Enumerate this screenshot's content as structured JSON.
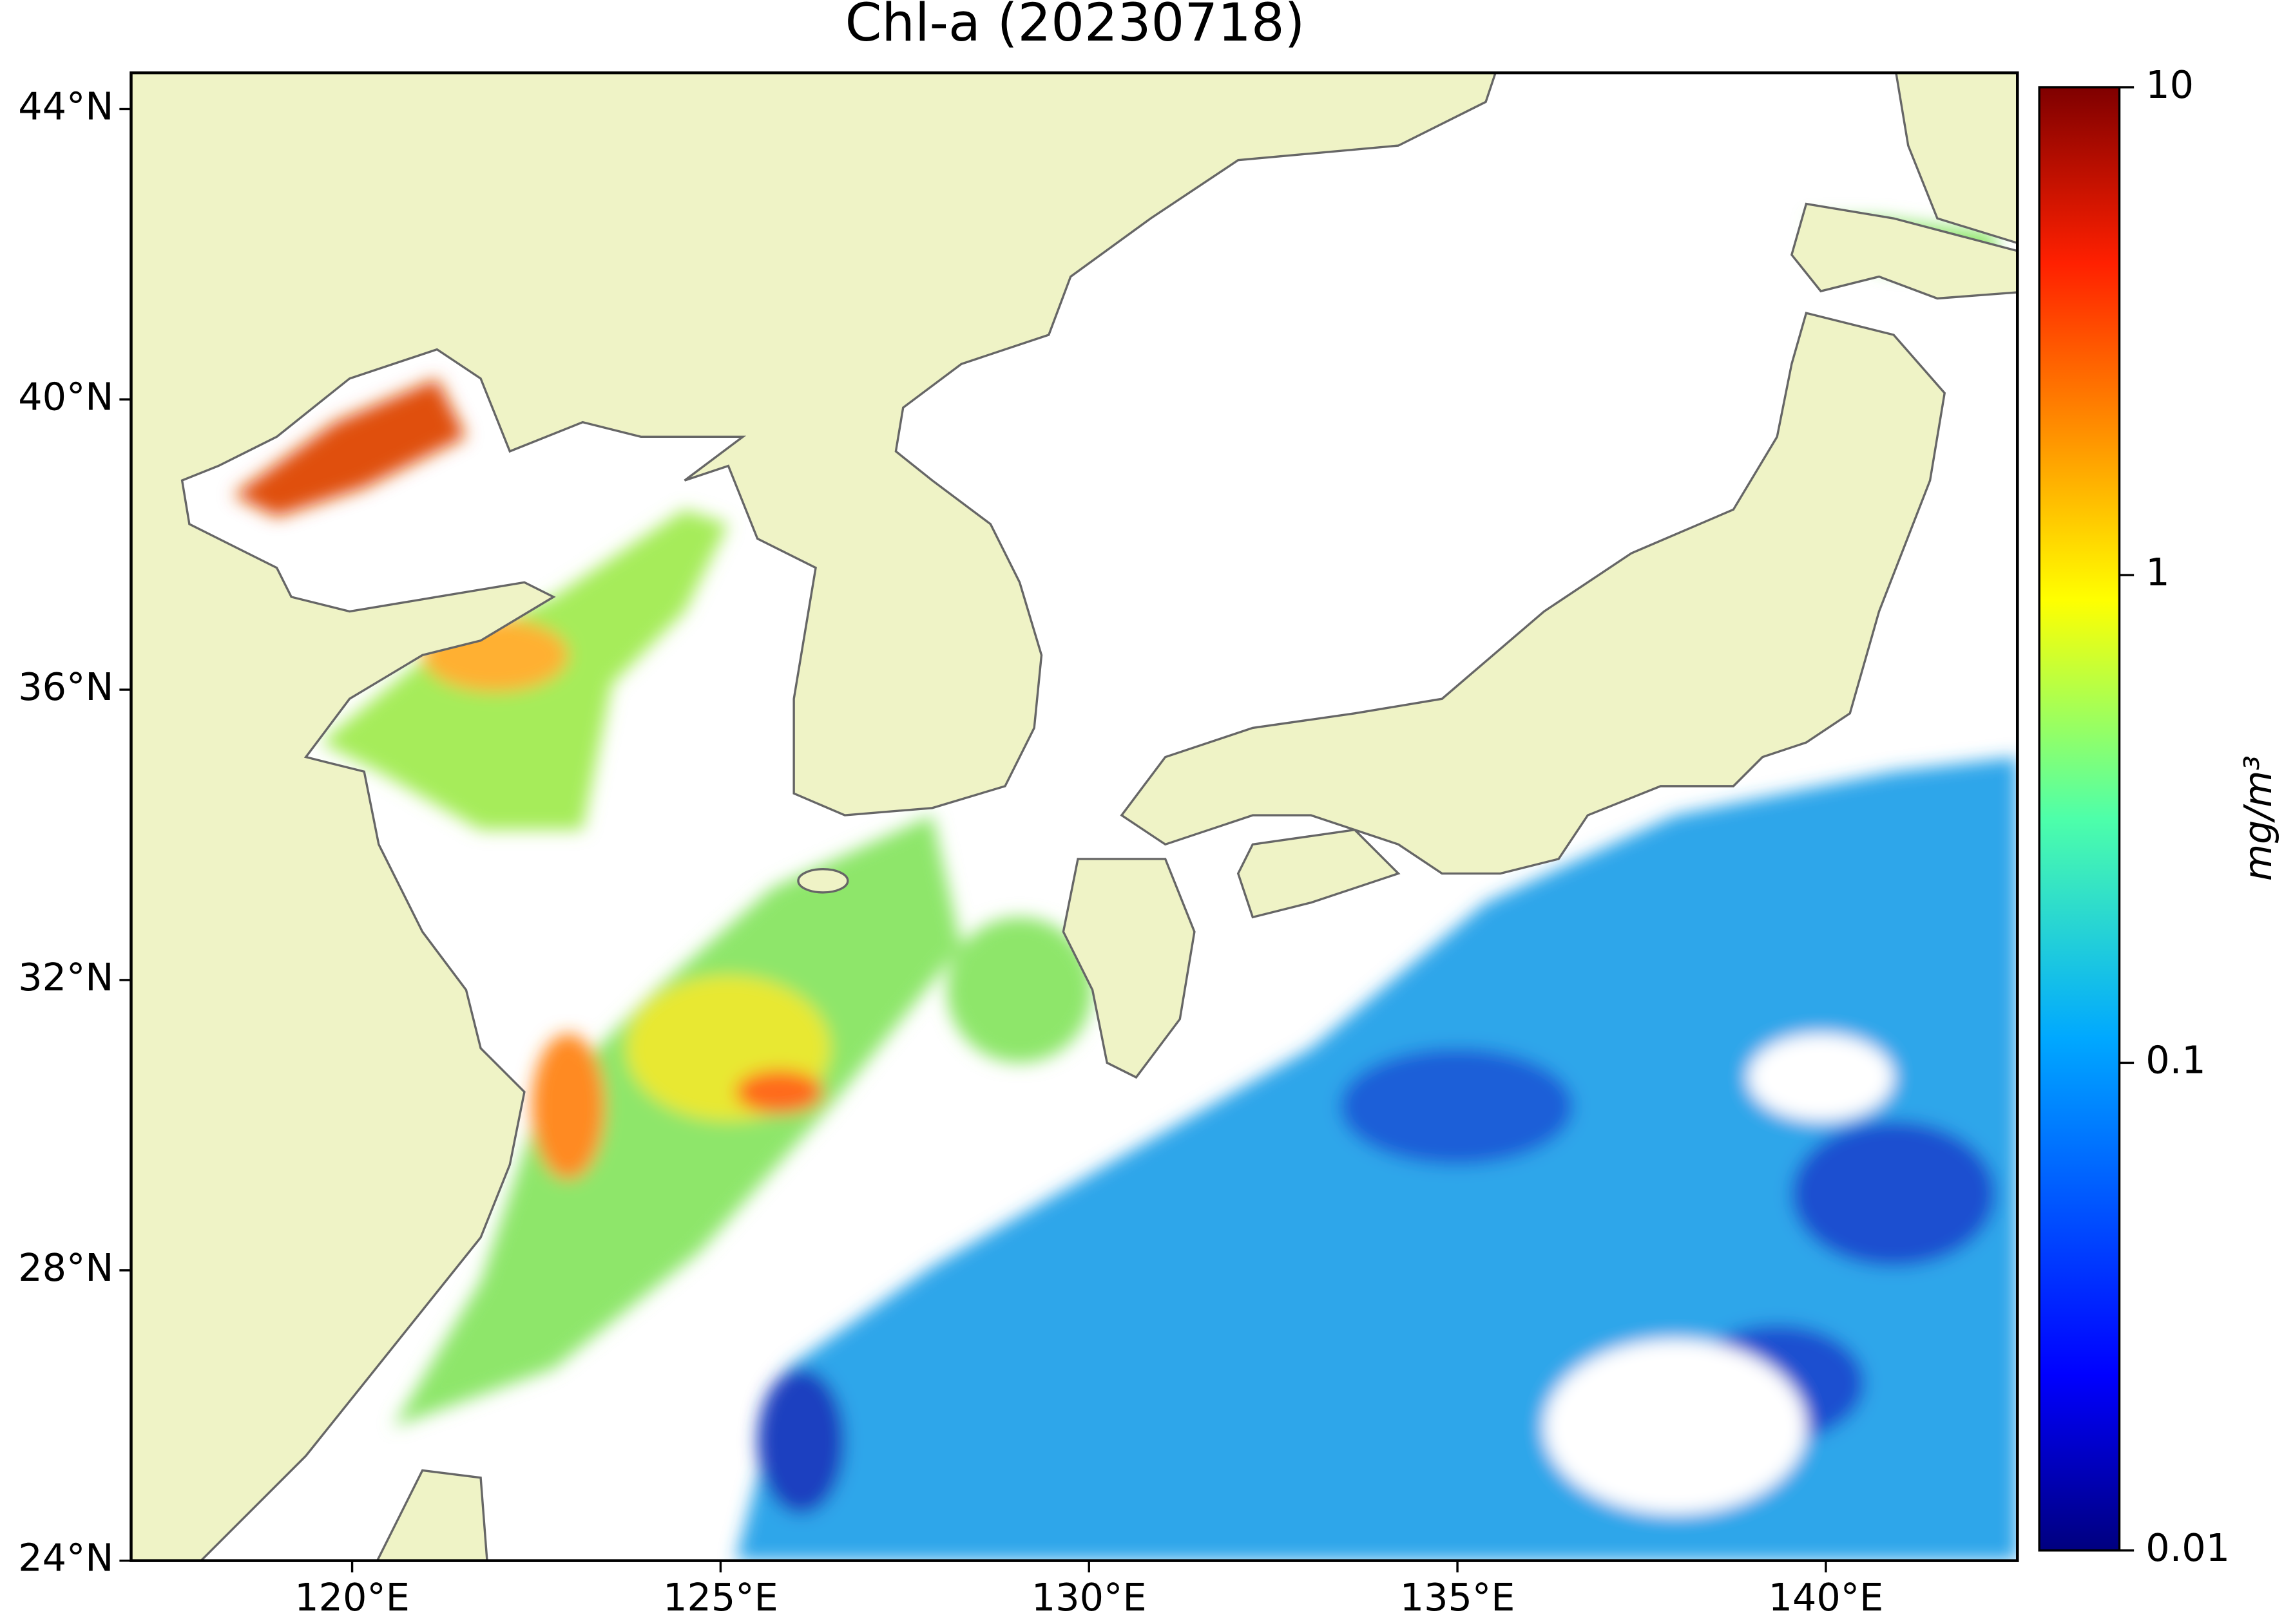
{
  "title": "Chl-a (20230718)",
  "map": {
    "xlim": [
      117,
      142.6
    ],
    "ylim": [
      24,
      44.5
    ],
    "xticks": [
      {
        "value": 120,
        "label": "120°E"
      },
      {
        "value": 125,
        "label": "125°E"
      },
      {
        "value": 130,
        "label": "130°E"
      },
      {
        "value": 135,
        "label": "135°E"
      },
      {
        "value": 140,
        "label": "140°E"
      }
    ],
    "yticks": [
      {
        "value": 24,
        "label": "24°N"
      },
      {
        "value": 28,
        "label": "28°N"
      },
      {
        "value": 32,
        "label": "32°N"
      },
      {
        "value": 36,
        "label": "36°N"
      },
      {
        "value": 40,
        "label": "40°N"
      },
      {
        "value": 44,
        "label": "44°N"
      }
    ]
  },
  "colorbar": {
    "label": "mg/m³",
    "log": true,
    "lim": [
      0.01,
      10
    ],
    "ticks": [
      0.01,
      0.1,
      1,
      10
    ]
  }
}
